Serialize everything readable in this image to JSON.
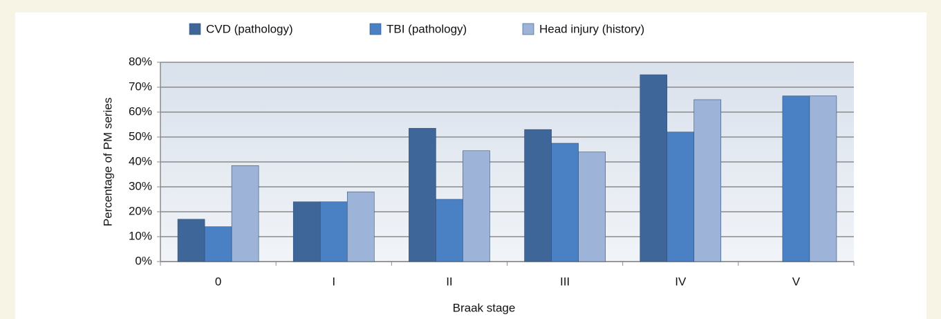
{
  "chart_data": {
    "type": "bar",
    "x_label": "Braak stage",
    "y_label": "Percentage of PM series",
    "categories": [
      "0",
      "I",
      "II",
      "III",
      "IV",
      "V"
    ],
    "series": [
      {
        "name": "CVD (pathology)",
        "color": "#3f6699",
        "values": [
          17,
          24,
          53.5,
          53,
          75,
          0
        ]
      },
      {
        "name": "TBI (pathology)",
        "color": "#4a80c4",
        "values": [
          14,
          24,
          25,
          47.5,
          52,
          66.5
        ]
      },
      {
        "name": "Head injury (history)",
        "color": "#9db4d8",
        "values": [
          38.5,
          28,
          44.5,
          44,
          65,
          66.5
        ]
      }
    ],
    "ylim": [
      0,
      80
    ],
    "yticks": [
      {
        "value": 0,
        "label": "0%"
      },
      {
        "value": 10,
        "label": "10%"
      },
      {
        "value": 20,
        "label": "20%"
      },
      {
        "value": 30,
        "label": "30%"
      },
      {
        "value": 40,
        "label": "40%"
      },
      {
        "value": 50,
        "label": "50%"
      },
      {
        "value": 60,
        "label": "60%"
      },
      {
        "value": 70,
        "label": "70%"
      },
      {
        "value": 80,
        "label": "80%"
      }
    ],
    "grid": true,
    "legend": "top"
  }
}
